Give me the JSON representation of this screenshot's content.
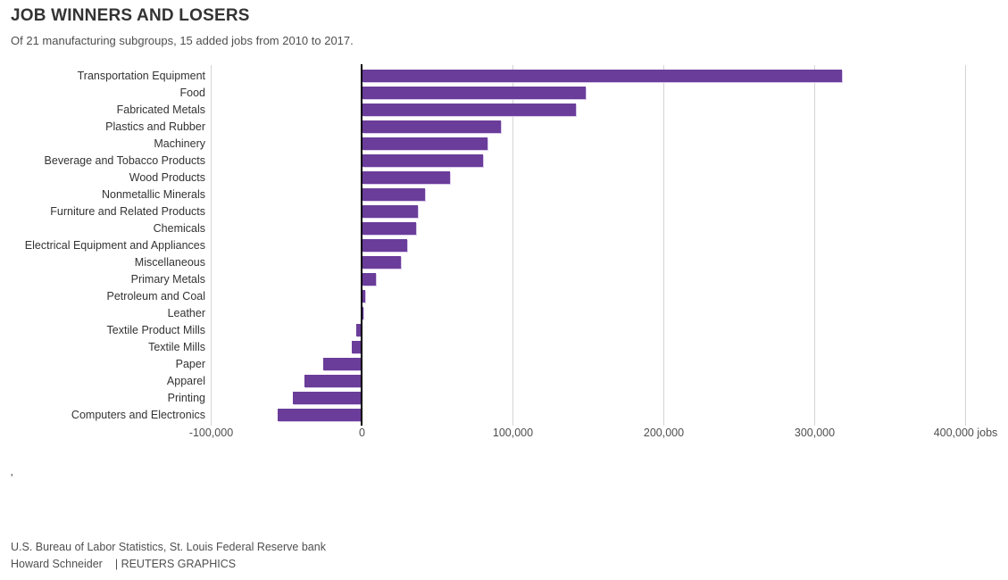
{
  "header": {
    "title": "JOB WINNERS AND LOSERS",
    "subtitle": "Of 21 manufacturing subgroups, 15 added jobs from 2010 to 2017."
  },
  "footer": {
    "note_mark": "'",
    "source": "U.S. Bureau of Labor Statistics, St. Louis Federal Reserve bank",
    "byline": "Howard Schneider",
    "credit": "| REUTERS GRAPHICS"
  },
  "colors": {
    "bar": "#6a3d9a",
    "bar_edge": "#d8c9ea",
    "gridline": "#d4d4d4",
    "zero_axis": "#000000",
    "title_text": "#333333",
    "muted_text": "#4f4f4f"
  },
  "chart_data": {
    "type": "bar",
    "orientation": "horizontal",
    "title": "JOB WINNERS AND LOSERS",
    "subtitle": "Of 21 manufacturing subgroups, 15 added jobs from 2010 to 2017.",
    "unit": "jobs",
    "xlabel": "jobs",
    "xlim": [
      -100000,
      400000
    ],
    "grid": true,
    "legend": "none",
    "categories": [
      "Transportation Equipment",
      "Food",
      "Fabricated Metals",
      "Plastics and Rubber",
      "Machinery",
      "Beverage and Tobacco Products",
      "Wood Products",
      "Nonmetallic Minerals",
      "Furniture and Related Products",
      "Chemicals",
      "Electrical Equipment and Appliances",
      "Miscellaneous",
      "Primary Metals",
      "Petroleum and Coal",
      "Leather",
      "Textile Product Mills",
      "Textile Mills",
      "Paper",
      "Apparel",
      "Printing",
      "Computers and Electronics"
    ],
    "values": [
      318000,
      148000,
      142000,
      92000,
      83000,
      80000,
      58000,
      42000,
      37000,
      36000,
      30000,
      26000,
      9000,
      2000,
      400,
      -4000,
      -7000,
      -26000,
      -38000,
      -46000,
      -56000
    ],
    "x_ticks": [
      {
        "value": -100000,
        "label": "-100,000"
      },
      {
        "value": 0,
        "label": "0"
      },
      {
        "value": 100000,
        "label": "100,000"
      },
      {
        "value": 200000,
        "label": "200,000"
      },
      {
        "value": 300000,
        "label": "300,000"
      },
      {
        "value": 400000,
        "label": "400,000 jobs"
      }
    ]
  }
}
